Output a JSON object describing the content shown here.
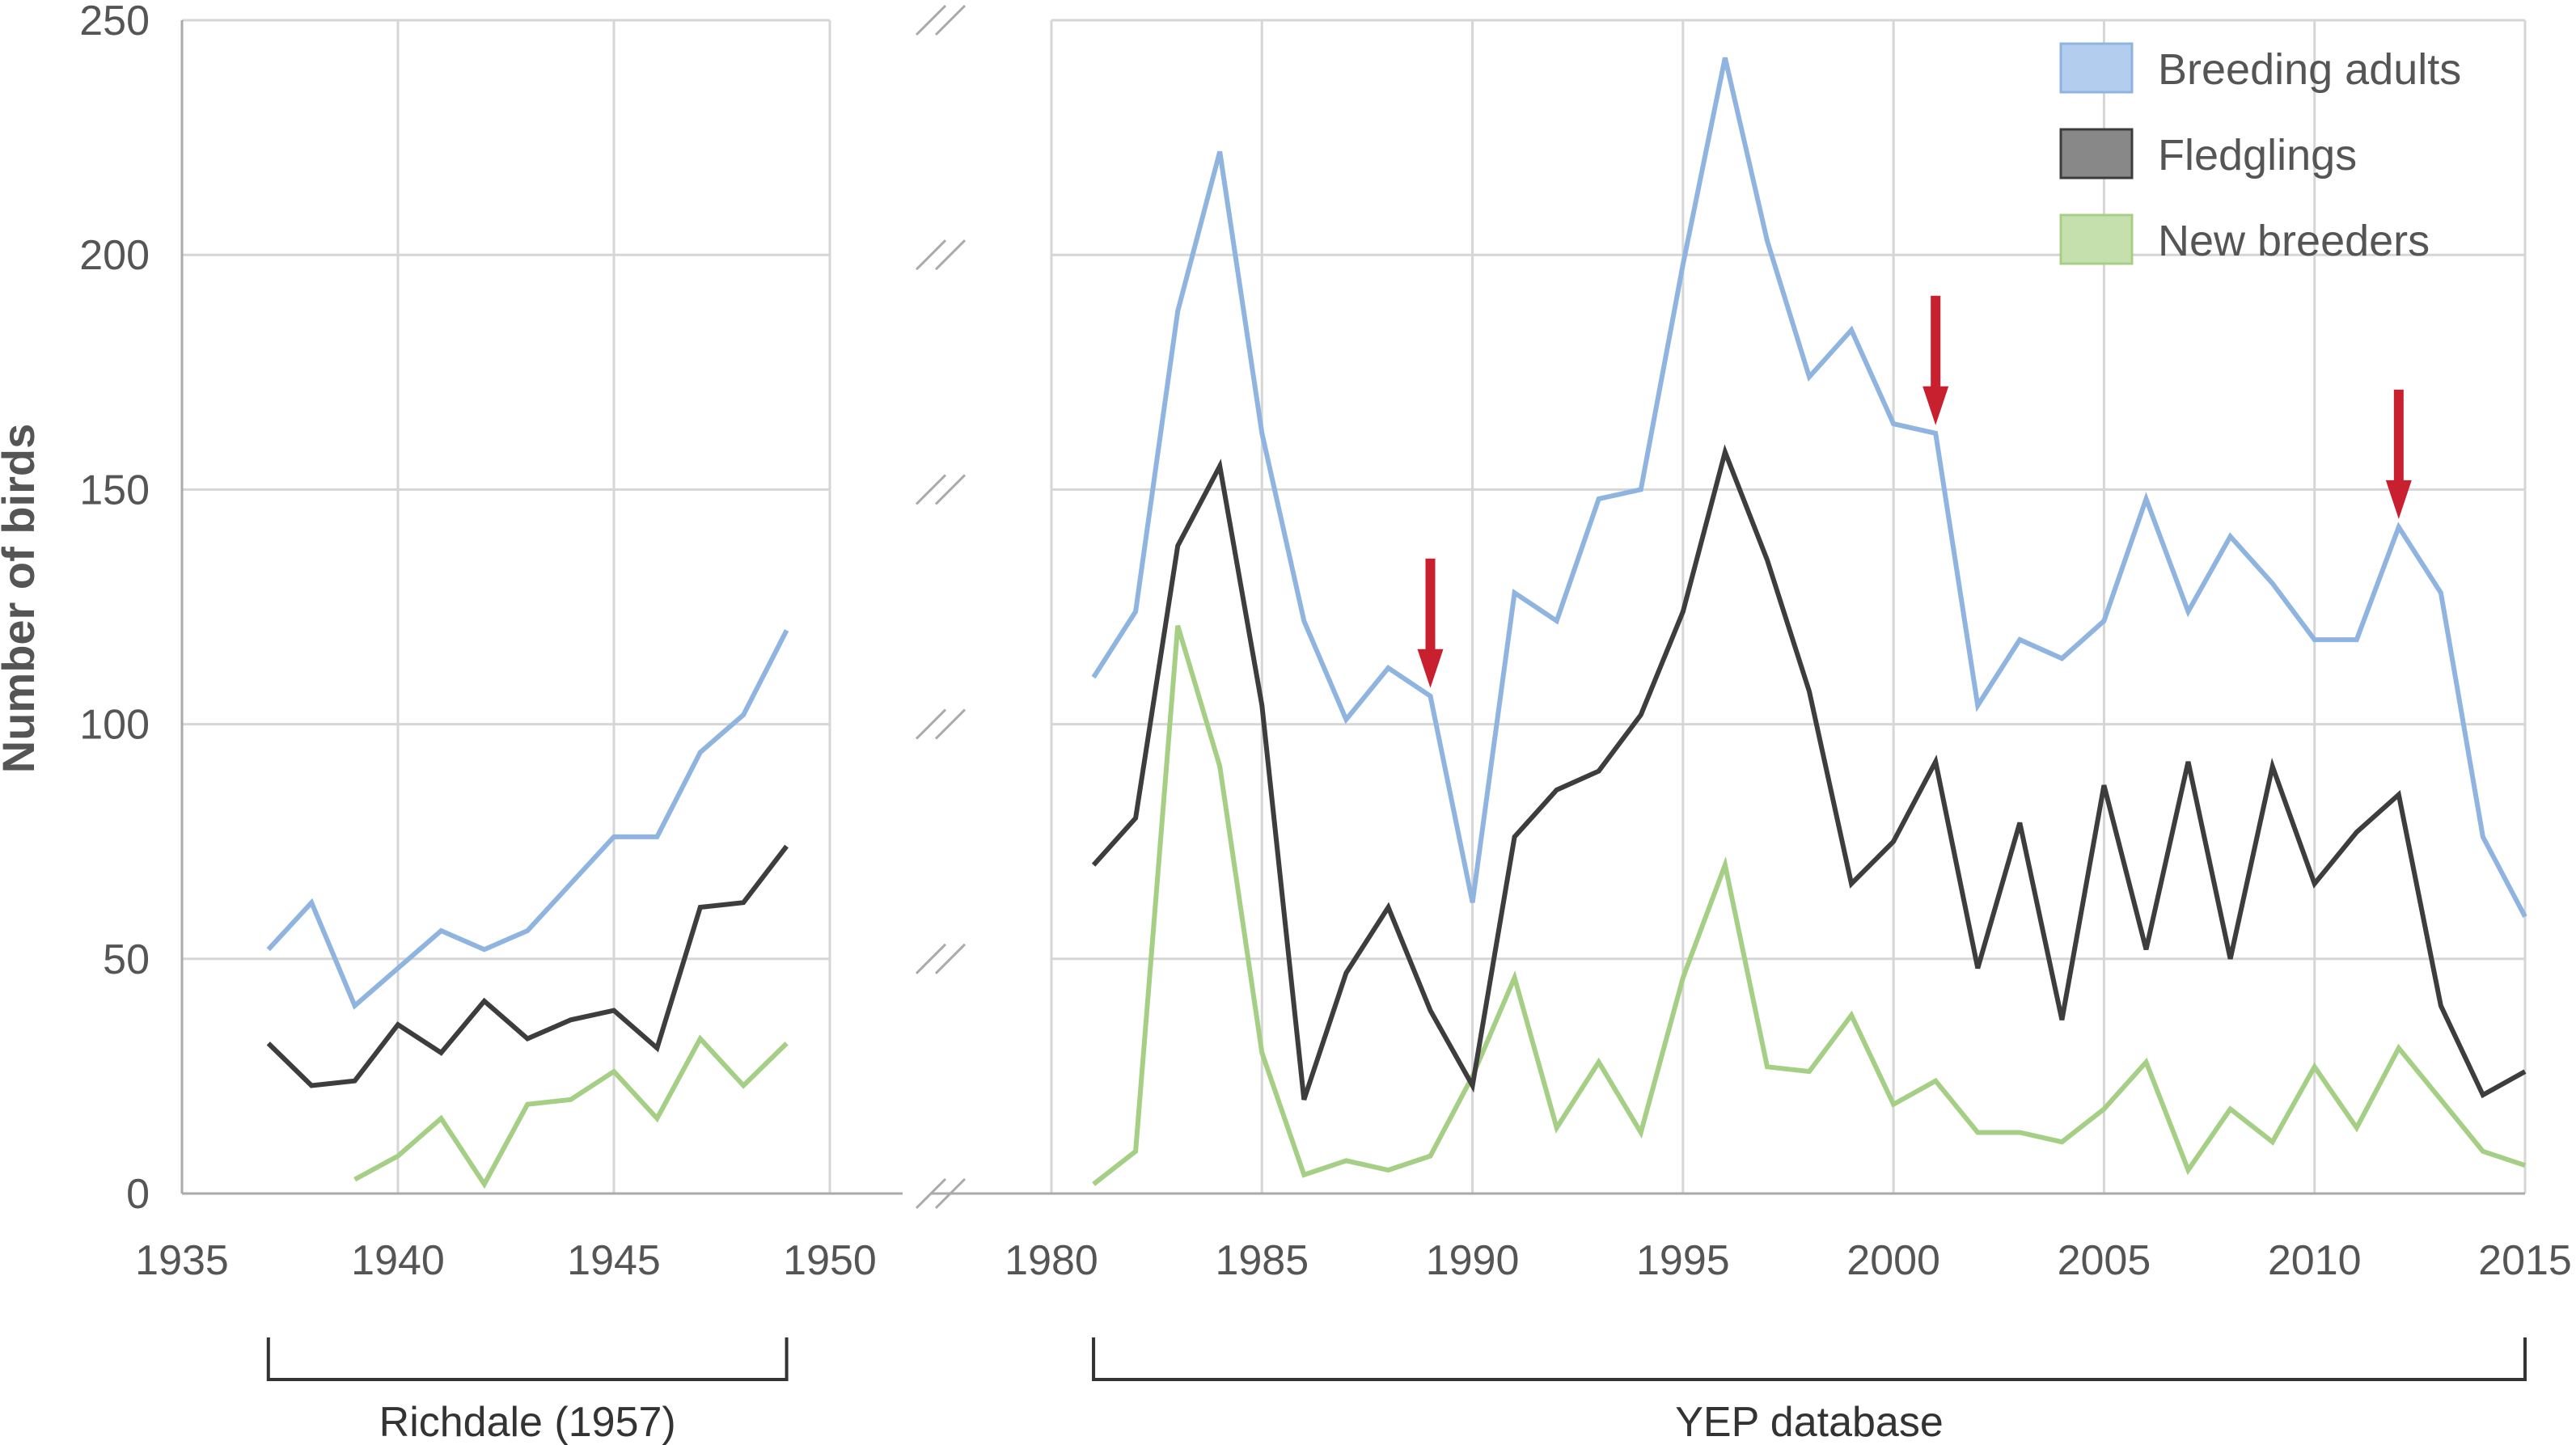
{
  "chart_data": {
    "type": "line",
    "title": "",
    "xlabel": "",
    "ylabel": "Number of birds",
    "ylim": [
      0,
      250
    ],
    "yticks": [
      0,
      50,
      100,
      150,
      200,
      250
    ],
    "x_segments": [
      {
        "range": [
          1935,
          1950
        ],
        "ticks": [
          1935,
          1940,
          1945,
          1950
        ]
      },
      {
        "range": [
          1980,
          2015
        ],
        "ticks": [
          1980,
          1985,
          1990,
          1995,
          2000,
          2005,
          2010,
          2015
        ]
      }
    ],
    "axis_break": true,
    "grid": true,
    "legend_position": "top-right",
    "series": [
      {
        "name": "Breeding adults",
        "color": "#90b4e0",
        "segments": [
          {
            "x": [
              1937,
              1938,
              1939,
              1940,
              1941,
              1942,
              1943,
              1944,
              1945,
              1946,
              1947,
              1948,
              1949
            ],
            "y": [
              52,
              62,
              40,
              48,
              56,
              52,
              56,
              66,
              76,
              76,
              94,
              102,
              120
            ]
          },
          {
            "x": [
              1981,
              1982,
              1983,
              1984,
              1985,
              1986,
              1987,
              1988,
              1989,
              1990,
              1991,
              1992,
              1993,
              1994,
              1995,
              1996,
              1997,
              1998,
              1999,
              2000,
              2001,
              2002,
              2003,
              2004,
              2005,
              2006,
              2007,
              2008,
              2009,
              2010,
              2011,
              2012,
              2013,
              2014,
              2015
            ],
            "y": [
              110,
              124,
              188,
              222,
              162,
              122,
              101,
              112,
              106,
              62,
              128,
              122,
              148,
              150,
              198,
              242,
              203,
              174,
              184,
              164,
              162,
              104,
              118,
              114,
              122,
              148,
              124,
              140,
              130,
              118,
              118,
              142,
              128,
              76,
              59
            ]
          }
        ]
      },
      {
        "name": "Fledglings",
        "color": "#3d3d3d",
        "segments": [
          {
            "x": [
              1937,
              1938,
              1939,
              1940,
              1941,
              1942,
              1943,
              1944,
              1945,
              1946,
              1947,
              1948,
              1949
            ],
            "y": [
              32,
              23,
              24,
              36,
              30,
              41,
              33,
              37,
              39,
              31,
              61,
              62,
              74
            ]
          },
          {
            "x": [
              1981,
              1982,
              1983,
              1984,
              1985,
              1986,
              1987,
              1988,
              1989,
              1990,
              1991,
              1992,
              1993,
              1994,
              1995,
              1996,
              1997,
              1998,
              1999,
              2000,
              2001,
              2002,
              2003,
              2004,
              2005,
              2006,
              2007,
              2008,
              2009,
              2010,
              2011,
              2012,
              2013,
              2014,
              2015
            ],
            "y": [
              70,
              80,
              138,
              155,
              104,
              20,
              47,
              61,
              39,
              23,
              76,
              86,
              90,
              102,
              124,
              158,
              135,
              107,
              66,
              75,
              92,
              48,
              79,
              37,
              87,
              52,
              92,
              50,
              91,
              66,
              77,
              85,
              40,
              21,
              26
            ]
          }
        ]
      },
      {
        "name": "New breeders",
        "color": "#a6cf86",
        "segments": [
          {
            "x": [
              1939,
              1940,
              1941,
              1942,
              1943,
              1944,
              1945,
              1946,
              1947,
              1948,
              1949
            ],
            "y": [
              3,
              8,
              16,
              2,
              19,
              20,
              26,
              16,
              33,
              23,
              32
            ]
          },
          {
            "x": [
              1981,
              1982,
              1983,
              1984,
              1985,
              1986,
              1987,
              1988,
              1989,
              1990,
              1991,
              1992,
              1993,
              1994,
              1995,
              1996,
              1997,
              1998,
              1999,
              2000,
              2001,
              2002,
              2003,
              2004,
              2005,
              2006,
              2007,
              2008,
              2009,
              2010,
              2011,
              2012,
              2013,
              2014,
              2015
            ],
            "y": [
              2,
              9,
              121,
              91,
              30,
              4,
              7,
              5,
              8,
              25,
              46,
              14,
              28,
              13,
              46,
              70,
              27,
              26,
              38,
              19,
              24,
              13,
              13,
              11,
              18,
              28,
              5,
              18,
              11,
              27,
              14,
              31,
              20,
              9,
              6
            ]
          }
        ]
      }
    ],
    "legend": [
      {
        "label": "Breeding adults",
        "color": "#b3cdee"
      },
      {
        "label": "Fledglings",
        "color": "#888888"
      },
      {
        "label": "New breeders",
        "color": "#c5e0ac"
      }
    ],
    "annotations": [
      {
        "type": "arrow",
        "color": "#c8202e",
        "x": 1989,
        "y": 106
      },
      {
        "type": "arrow",
        "color": "#c8202e",
        "x": 2001,
        "y": 162
      },
      {
        "type": "arrow",
        "color": "#c8202e",
        "x": 2012,
        "y": 142
      }
    ],
    "brackets": [
      {
        "label": "Richdale (1957)",
        "x_range": [
          1937,
          1949
        ]
      },
      {
        "label": "YEP database",
        "x_range": [
          1981,
          2015
        ]
      }
    ]
  }
}
